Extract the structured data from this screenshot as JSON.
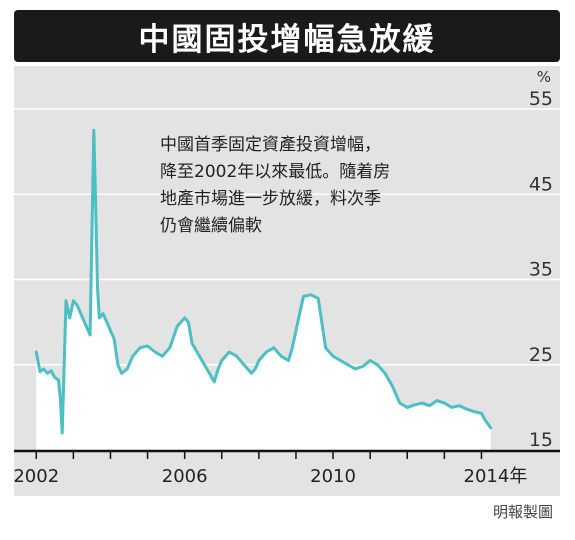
{
  "header": {
    "title": "中國固投增幅急放緩"
  },
  "annotation": {
    "lines": [
      "中國首季固定資產投資增幅，",
      "降至2002年以來最低。隨着房",
      "地產市場進一步放緩，料次季",
      "仍會繼續偏軟"
    ]
  },
  "footer": {
    "credit": "明報製圖"
  },
  "chart_data": {
    "type": "area",
    "title": "中國固投增幅急放緩",
    "ylabel": "%",
    "xlabel": "",
    "ylim": [
      15,
      55
    ],
    "xlim": [
      2001.75,
      2014.5
    ],
    "y_ticks": [
      15,
      25,
      35,
      45,
      55
    ],
    "x_ticks": [
      {
        "value": 2002,
        "label": "2002"
      },
      {
        "value": 2006,
        "label": "2006"
      },
      {
        "value": 2010,
        "label": "2010"
      },
      {
        "value": 2014,
        "label": "2014年"
      }
    ],
    "grid": "horizontal",
    "line_color": "#4bbfc4",
    "fill_color": "#ffffff",
    "series": [
      {
        "x": [
          2002.0,
          2002.1,
          2002.2,
          2002.3,
          2002.4,
          2002.5,
          2002.6,
          2002.65,
          2002.7,
          2002.8,
          2002.9,
          2003.0,
          2003.1,
          2003.2,
          2003.3,
          2003.45,
          2003.55,
          2003.6,
          2003.65,
          2003.7,
          2003.8,
          2003.9,
          2004.0,
          2004.1,
          2004.2,
          2004.3,
          2004.45,
          2004.6,
          2004.8,
          2005.0,
          2005.2,
          2005.4,
          2005.6,
          2005.8,
          2006.0,
          2006.1,
          2006.2,
          2006.4,
          2006.6,
          2006.8,
          2006.9,
          2007.0,
          2007.2,
          2007.4,
          2007.6,
          2007.8,
          2007.9,
          2008.0,
          2008.2,
          2008.4,
          2008.6,
          2008.8,
          2008.9,
          2009.0,
          2009.2,
          2009.4,
          2009.5,
          2009.6,
          2009.8,
          2010.0,
          2010.2,
          2010.4,
          2010.6,
          2010.8,
          2011.0,
          2011.2,
          2011.4,
          2011.6,
          2011.8,
          2012.0,
          2012.2,
          2012.4,
          2012.6,
          2012.8,
          2013.0,
          2013.2,
          2013.4,
          2013.6,
          2013.8,
          2014.0,
          2014.1,
          2014.25
        ],
        "y": [
          26.5,
          24.2,
          24.5,
          24.0,
          24.3,
          23.5,
          23.2,
          21.0,
          17.0,
          32.5,
          30.5,
          32.5,
          32.0,
          31.0,
          30.0,
          28.5,
          52.5,
          44.0,
          34.0,
          30.5,
          31.0,
          30.0,
          29.0,
          28.0,
          25.0,
          24.0,
          24.5,
          26.0,
          27.0,
          27.2,
          26.5,
          26.0,
          27.0,
          29.5,
          30.5,
          30.0,
          27.5,
          26.0,
          24.5,
          23.0,
          24.5,
          25.5,
          26.5,
          26.0,
          25.0,
          24.0,
          24.5,
          25.5,
          26.5,
          27.0,
          26.0,
          25.5,
          27.0,
          29.0,
          33.0,
          33.2,
          33.0,
          32.8,
          27.0,
          26.0,
          25.5,
          25.0,
          24.5,
          24.8,
          25.5,
          25.0,
          24.0,
          22.5,
          20.5,
          20.0,
          20.3,
          20.5,
          20.2,
          20.8,
          20.5,
          20.0,
          20.2,
          19.8,
          19.5,
          19.3,
          18.5,
          17.6
        ]
      }
    ]
  }
}
